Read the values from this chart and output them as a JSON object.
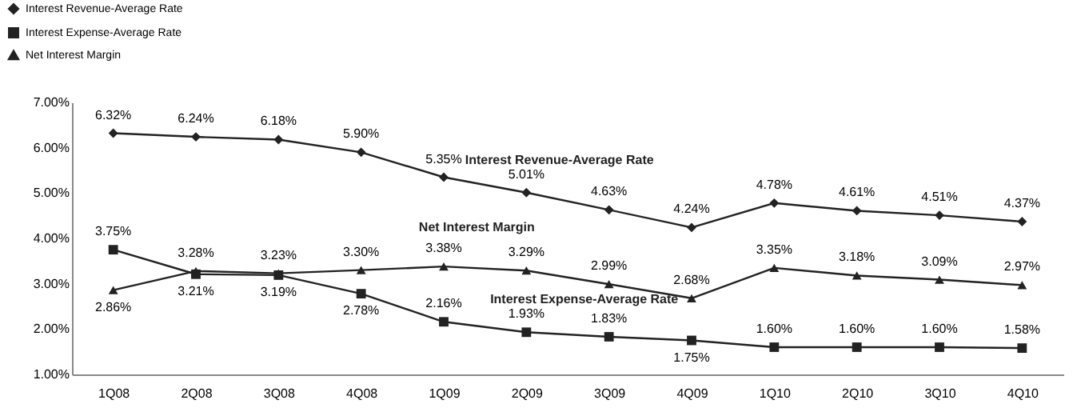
{
  "chart_data": {
    "type": "line",
    "categories": [
      "1Q08",
      "2Q08",
      "3Q08",
      "4Q08",
      "1Q09",
      "2Q09",
      "3Q09",
      "4Q09",
      "1Q10",
      "2Q10",
      "3Q10",
      "4Q10"
    ],
    "series": [
      {
        "name": "Interest Revenue-Average Rate",
        "color": "#222222",
        "marker": "diamond",
        "values": [
          6.32,
          6.24,
          6.18,
          5.9,
          5.35,
          5.01,
          4.63,
          4.24,
          4.78,
          4.61,
          4.51,
          4.37
        ],
        "value_labels": [
          "6.32%",
          "6.24%",
          "6.18%",
          "5.90%",
          "5.35%",
          "5.01%",
          "4.63%",
          "4.24%",
          "4.78%",
          "4.61%",
          "4.51%",
          "4.37%"
        ]
      },
      {
        "name": "Interest Expense-Average Rate",
        "color": "#222222",
        "marker": "square",
        "values": [
          3.75,
          3.21,
          3.19,
          2.78,
          2.16,
          1.93,
          1.83,
          1.75,
          1.6,
          1.6,
          1.6,
          1.58
        ],
        "value_labels": [
          "3.75%",
          "3.21%",
          "3.19%",
          "2.78%",
          "2.16%",
          "1.93%",
          "1.83%",
          "1.75%",
          "1.60%",
          "1.60%",
          "1.60%",
          "1.58%"
        ]
      },
      {
        "name": "Net Interest Margin",
        "color": "#222222",
        "marker": "triangle",
        "values": [
          2.86,
          3.28,
          3.23,
          3.3,
          3.38,
          3.29,
          2.99,
          2.68,
          3.35,
          3.18,
          3.09,
          2.97
        ],
        "value_labels": [
          "2.86%",
          "3.28%",
          "3.23%",
          "3.30%",
          "3.38%",
          "3.29%",
          "2.99%",
          "2.68%",
          "3.35%",
          "3.18%",
          "3.09%",
          "2.97%"
        ]
      }
    ],
    "ylim": [
      1,
      7
    ],
    "yticks": [
      {
        "value": 1,
        "label": "1.00%"
      },
      {
        "value": 2,
        "label": "2.00%"
      },
      {
        "value": 3,
        "label": "3.00%"
      },
      {
        "value": 4,
        "label": "4.00%"
      },
      {
        "value": 5,
        "label": "5.00%"
      },
      {
        "value": 6,
        "label": "6.00%"
      },
      {
        "value": 7,
        "label": "7.00%"
      }
    ],
    "legend": "top left"
  }
}
